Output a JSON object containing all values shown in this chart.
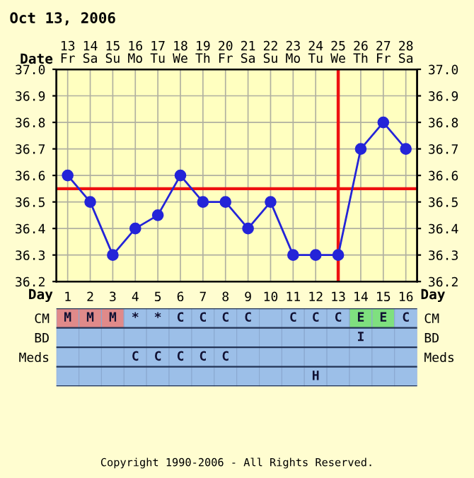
{
  "chart_data": [
    {
      "type": "line",
      "title": "Oct 13, 2006",
      "xlabel": "Day",
      "x2label": "Date",
      "x": [
        1,
        2,
        3,
        4,
        5,
        6,
        7,
        8,
        9,
        10,
        11,
        12,
        13,
        14,
        15,
        16
      ],
      "xlim": [
        0.5,
        16.5
      ],
      "xticks": [
        1,
        2,
        3,
        4,
        5,
        6,
        7,
        8,
        9,
        10,
        11,
        12,
        13,
        14,
        15,
        16
      ],
      "x2lim": [
        12.5,
        28.5
      ],
      "x2ticks": [
        {
          "value": 13,
          "label": "13\nFr"
        },
        {
          "value": 14,
          "label": "14\nSa"
        },
        {
          "value": 15,
          "label": "15\nSu"
        },
        {
          "value": 16,
          "label": "16\nMo"
        },
        {
          "value": 17,
          "label": "17\nTu"
        },
        {
          "value": 18,
          "label": "18\nWe"
        },
        {
          "value": 19,
          "label": "19\nTh"
        },
        {
          "value": 20,
          "label": "20\nFr"
        },
        {
          "value": 21,
          "label": "21\nSa"
        },
        {
          "value": 22,
          "label": "22\nSu"
        },
        {
          "value": 23,
          "label": "23\nMo"
        },
        {
          "value": 24,
          "label": "24\nTu"
        },
        {
          "value": 25,
          "label": "25\nWe"
        },
        {
          "value": 26,
          "label": "26\nTh"
        },
        {
          "value": 27,
          "label": "27\nFr"
        },
        {
          "value": 28,
          "label": "28\nSa"
        }
      ],
      "series": [
        {
          "color": "#2424d8",
          "values": [
            36.6,
            36.5,
            36.3,
            36.4,
            36.45,
            36.6,
            36.5,
            36.5,
            36.4,
            36.5,
            36.3,
            36.3,
            36.3,
            36.7,
            36.8,
            36.7
          ]
        }
      ],
      "ylim": [
        36.2,
        37
      ],
      "yticks": [
        36.2,
        36.3,
        36.4,
        36.5,
        36.6,
        36.7,
        36.8,
        36.9,
        {
          "value": 37,
          "label": "37.0"
        }
      ],
      "y2lim": [
        36.2,
        37
      ],
      "y2ticks": [
        36.2,
        36.3,
        36.4,
        36.5,
        36.6,
        36.7,
        36.8,
        36.9,
        {
          "value": 37,
          "label": "37.0"
        }
      ],
      "ref_lines": [
        {
          "axis": "y",
          "value": 36.55,
          "color": "#ee1111"
        },
        {
          "axis": "x",
          "value": 13,
          "color": "#ee1111"
        }
      ],
      "grid": true,
      "marker": "circle",
      "line_style": "solid",
      "legend": false
    },
    {
      "type": "other",
      "y_categories": [
        "CM",
        "BD",
        "Meds",
        null
      ],
      "y2_categories": [
        "CM",
        "BD",
        "Meds",
        null
      ],
      "cell_labels": [
        [
          "M",
          "M",
          "M",
          "*",
          "*",
          "C",
          "C",
          "C",
          "C",
          null,
          "C",
          "C",
          "C",
          "E",
          "E",
          "C"
        ],
        [
          null,
          null,
          null,
          null,
          null,
          null,
          null,
          null,
          null,
          null,
          null,
          null,
          null,
          "I",
          null,
          null
        ],
        [
          null,
          null,
          null,
          "C",
          "C",
          "C",
          "C",
          "C",
          null,
          null,
          null,
          null,
          null,
          null,
          null,
          null
        ],
        [
          null,
          null,
          null,
          null,
          null,
          null,
          null,
          null,
          null,
          null,
          null,
          "H",
          null,
          null,
          null,
          null
        ]
      ],
      "colors": [
        [
          "#e08a8a",
          "#e08a8a",
          "#e08a8a",
          "#9cbfe8",
          "#9cbfe8",
          "#9cbfe8",
          "#9cbfe8",
          "#9cbfe8",
          "#9cbfe8",
          "#9cbfe8",
          "#9cbfe8",
          "#9cbfe8",
          "#9cbfe8",
          "#7fe07f",
          "#7fe07f",
          "#9cbfe8"
        ],
        [
          "#9cbfe8",
          "#9cbfe8",
          "#9cbfe8",
          "#9cbfe8",
          "#9cbfe8",
          "#9cbfe8",
          "#9cbfe8",
          "#9cbfe8",
          "#9cbfe8",
          "#9cbfe8",
          "#9cbfe8",
          "#9cbfe8",
          "#9cbfe8",
          "#9cbfe8",
          "#9cbfe8",
          "#9cbfe8"
        ],
        [
          "#9cbfe8",
          "#9cbfe8",
          "#9cbfe8",
          "#9cbfe8",
          "#9cbfe8",
          "#9cbfe8",
          "#9cbfe8",
          "#9cbfe8",
          "#9cbfe8",
          "#9cbfe8",
          "#9cbfe8",
          "#9cbfe8",
          "#9cbfe8",
          "#9cbfe8",
          "#9cbfe8",
          "#9cbfe8"
        ],
        [
          "#9cbfe8",
          "#9cbfe8",
          "#9cbfe8",
          "#9cbfe8",
          "#9cbfe8",
          "#9cbfe8",
          "#9cbfe8",
          "#9cbfe8",
          "#9cbfe8",
          "#9cbfe8",
          "#9cbfe8",
          "#9cbfe8",
          "#9cbfe8",
          "#9cbfe8",
          "#9cbfe8",
          "#9cbfe8"
        ]
      ],
      "annotations": [
        "Copyright 1990-2006 - All Rights Reserved."
      ]
    }
  ]
}
